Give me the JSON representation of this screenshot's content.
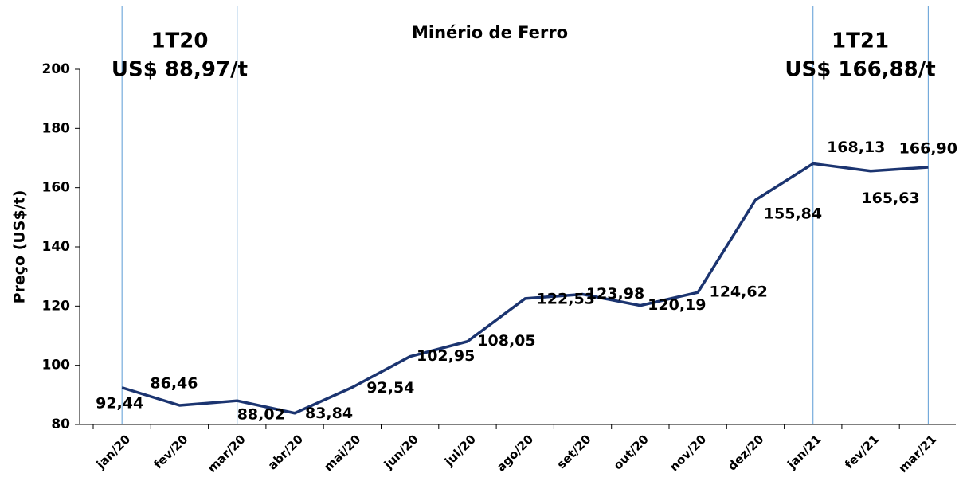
{
  "chart_data": {
    "type": "line",
    "title": "Minério de Ferro",
    "ylabel": "Preço (US$/t)",
    "categories": [
      "jan/20",
      "fev/20",
      "mar/20",
      "abr/20",
      "mai/20",
      "jun/20",
      "jul/20",
      "ago/20",
      "set/20",
      "out/20",
      "nov/20",
      "dez/20",
      "jan/21",
      "fev/21",
      "mar/21"
    ],
    "series": [
      {
        "name": "Minério de Ferro",
        "color": "#1b3470",
        "values": [
          92.44,
          86.46,
          88.02,
          83.84,
          92.54,
          102.95,
          108.05,
          122.53,
          123.98,
          120.19,
          124.62,
          155.84,
          168.13,
          165.63,
          166.9
        ],
        "value_labels": [
          "92,44",
          "86,46",
          "88,02",
          "83,84",
          "92,54",
          "102,95",
          "108,05",
          "122,53",
          "123,98",
          "120,19",
          "124,62",
          "155,84",
          "168,13",
          "165,63",
          "166,90"
        ]
      }
    ],
    "ylim": [
      80,
      200
    ],
    "yticks": [
      80,
      100,
      120,
      140,
      160,
      180,
      200
    ],
    "annotations": [
      {
        "label": "1T20",
        "sublabel": "US$ 88,97/t",
        "from": "jan/20",
        "to": "mar/20"
      },
      {
        "label": "1T21",
        "sublabel": "US$ 166,88/t",
        "from": "jan/21",
        "to": "mar/21"
      }
    ]
  }
}
